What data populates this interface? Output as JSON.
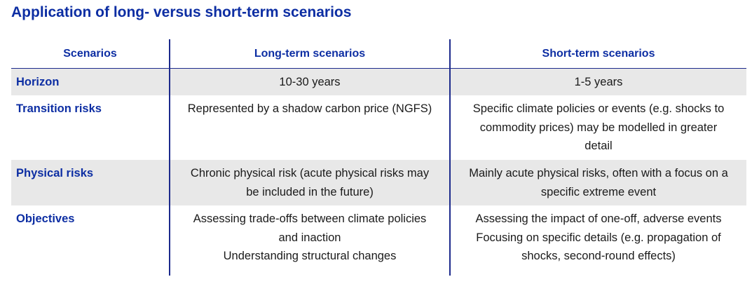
{
  "title": "Application of long- versus short-term scenarios",
  "table": {
    "headers": [
      "Scenarios",
      "Long-term scenarios",
      "Short-term scenarios"
    ],
    "rows": [
      {
        "label": "Horizon",
        "long": [
          "10-30 years"
        ],
        "short": [
          "1-5 years"
        ]
      },
      {
        "label": "Transition risks",
        "long": [
          "Represented by a shadow carbon price (NGFS)"
        ],
        "short": [
          "Specific climate policies or events (e.g. shocks to",
          "commodity prices) may be modelled in greater",
          "detail"
        ]
      },
      {
        "label": "Physical risks",
        "long": [
          "Chronic physical risk (acute physical risks may",
          "be included in the future)"
        ],
        "short": [
          "Mainly acute physical risks, often with a focus on a",
          "specific extreme event"
        ]
      },
      {
        "label": "Objectives",
        "long": [
          "Assessing trade-offs between climate policies",
          "and inaction",
          "Understanding structural changes"
        ],
        "short": [
          "Assessing the impact of one-off, adverse events",
          "Focusing on specific details (e.g. propagation of",
          "shocks, second-round effects)"
        ]
      }
    ]
  },
  "colors": {
    "title": "#0d2ea3",
    "header_text": "#0d2ea3",
    "rule": "#1c2a8c",
    "shaded_row": "#e8e8e8"
  }
}
